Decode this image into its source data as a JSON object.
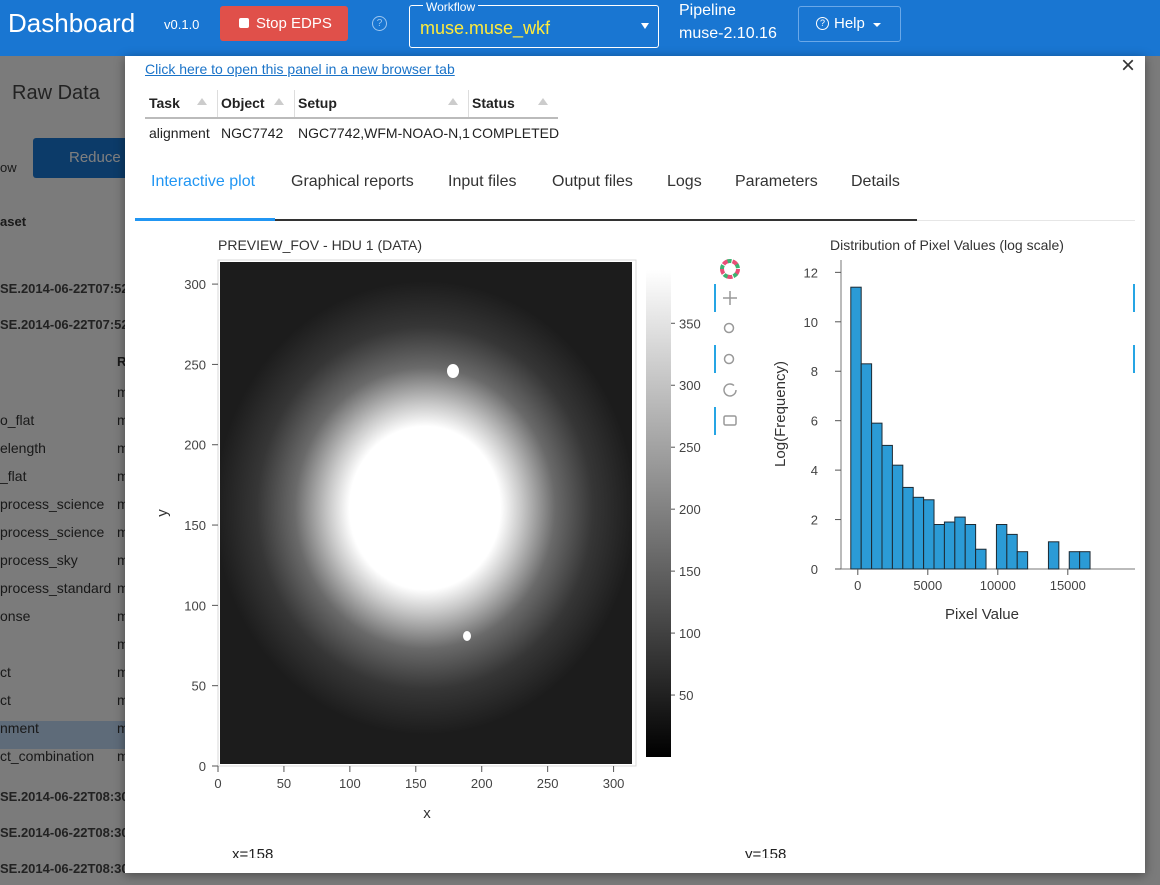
{
  "header": {
    "title": "Dashboard",
    "version": "v0.1.0",
    "stop_button": "Stop EDPS",
    "workflow_label": "Workflow",
    "workflow_value": "muse.muse_wkf",
    "pipeline_label": "Pipeline",
    "pipeline_version": "muse-2.10.16",
    "help_button": "Help"
  },
  "background": {
    "panel_title": "Raw Data",
    "reduce_button": "Reduce",
    "filter_label": "ow",
    "column_header": "aset",
    "column_header_2": "R",
    "top_dates": [
      "SE.2014-06-22T07:52",
      "SE.2014-06-22T07:52"
    ],
    "task_rows": [
      {
        "col": "m"
      },
      {
        "name": "o_flat",
        "col": "m"
      },
      {
        "name": "elength",
        "col": "m"
      },
      {
        "name": "_flat",
        "col": "m"
      },
      {
        "name": "process_science",
        "col": "m"
      },
      {
        "name": "process_science",
        "col": "m"
      },
      {
        "name": "process_sky",
        "col": "m"
      },
      {
        "name": "process_standard",
        "col": "m"
      },
      {
        "name": "onse",
        "col": "m"
      },
      {
        "col": "m"
      },
      {
        "name": "ct",
        "col": "m"
      },
      {
        "name": "ct",
        "col": "m"
      },
      {
        "name": "nment",
        "col": "m"
      },
      {
        "name": "ct_combination",
        "col": "m"
      }
    ],
    "bottom_dates": [
      "SE.2014-06-22T08:30",
      "SE.2014-06-22T08:30",
      "SE.2014-06-22T08:30"
    ]
  },
  "panel": {
    "link": "Click here to open this panel in a new browser tab",
    "table": {
      "columns": [
        "Task",
        "Object",
        "Setup",
        "Status"
      ],
      "rows": [
        [
          "alignment",
          "NGC7742",
          "NGC7742,WFM-NOAO-N,1",
          "COMPLETED"
        ]
      ]
    },
    "tabs": [
      "Interactive plot",
      "Graphical reports",
      "Input files",
      "Output files",
      "Logs",
      "Parameters",
      "Details"
    ],
    "readouts": [
      "x=158",
      "y=158"
    ]
  },
  "chart_data": [
    {
      "type": "image",
      "title": "PREVIEW_FOV - HDU 1 (DATA)",
      "x_label": "x",
      "y_label": "y",
      "xlim": [
        0,
        317
      ],
      "xticks": [
        0,
        50,
        100,
        150,
        200,
        250,
        300
      ],
      "ylim": [
        0,
        315
      ],
      "yticks": [
        0,
        50,
        100,
        150,
        200,
        250,
        300
      ],
      "colorbar": {
        "clim": [
          0,
          393
        ],
        "ticks": [
          50,
          100,
          150,
          200,
          250,
          300,
          350
        ]
      }
    },
    {
      "type": "histogram",
      "title": "Distribution of Pixel Values (log scale)",
      "x_label": "Pixel Value",
      "y_label": "Log(Frequency)",
      "color": "#2b9bd6",
      "bins": [
        -500,
        243,
        986,
        1729,
        2472,
        3215,
        3958,
        4701,
        5444,
        6187,
        6930,
        7673,
        8416,
        9159,
        9902,
        10645,
        11388,
        12131,
        12874,
        13617,
        14360,
        15103,
        15846,
        16589
      ],
      "values": [
        11.4,
        8.3,
        5.9,
        5.0,
        4.2,
        3.3,
        2.9,
        2.8,
        1.8,
        1.9,
        2.1,
        1.8,
        0.8,
        0,
        1.8,
        1.4,
        0.7,
        0,
        0,
        1.1,
        0,
        0.7,
        0.7
      ],
      "xlim": [
        -1200,
        19800
      ],
      "xticks": [
        0,
        5000,
        10000,
        15000
      ],
      "ylim": [
        0,
        12.5
      ],
      "yticks": [
        0,
        2,
        4,
        6,
        8,
        10,
        12
      ]
    }
  ]
}
